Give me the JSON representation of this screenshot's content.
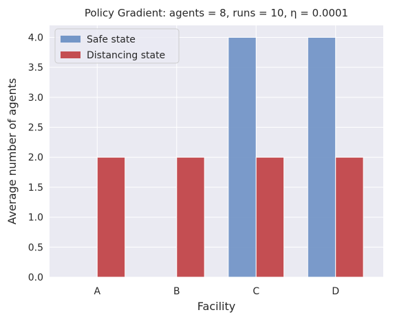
{
  "chart_data": {
    "type": "bar",
    "title": "Policy Gradient: agents = 8, runs = 10, η = 0.0001",
    "xlabel": "Facility",
    "ylabel": "Average number of agents",
    "categories": [
      "A",
      "B",
      "C",
      "D"
    ],
    "series": [
      {
        "name": "Safe state",
        "values": [
          0,
          0,
          4,
          4
        ],
        "color": "#7496c7"
      },
      {
        "name": "Distancing state",
        "values": [
          2,
          2,
          2,
          2
        ],
        "color": "#c44e52"
      }
    ],
    "ylim": [
      0,
      4.2
    ],
    "yticks": [
      "0.0",
      "0.5",
      "1.0",
      "1.5",
      "2.0",
      "2.5",
      "3.0",
      "3.5",
      "4.0"
    ],
    "ytick_values": [
      0,
      0.5,
      1.0,
      1.5,
      2.0,
      2.5,
      3.0,
      3.5,
      4.0
    ],
    "grid": true,
    "legend": "top-left",
    "background": "#eaeaf2",
    "grid_color": "#ffffff"
  }
}
